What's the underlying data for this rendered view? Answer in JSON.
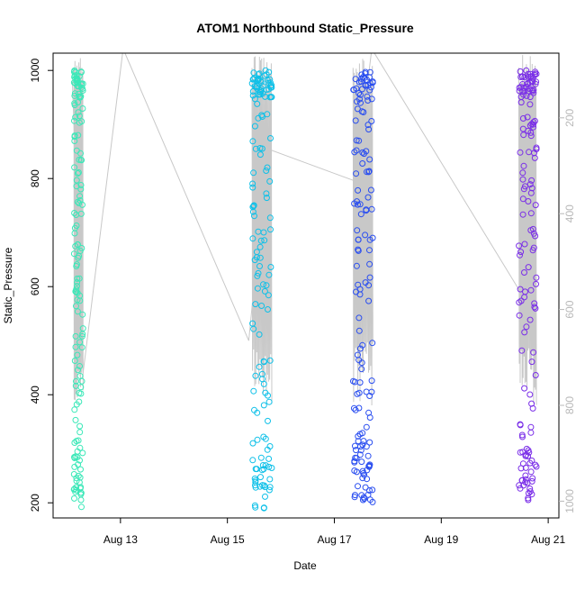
{
  "chart_data": {
    "type": "scatter",
    "title": "ATOM1 Northbound Static_Pressure",
    "xlabel": "Date",
    "ylabel": "Static_Pressure",
    "x_ticks": [
      "Aug 13",
      "Aug 15",
      "Aug 17",
      "Aug 19",
      "Aug 21"
    ],
    "x_tick_days": [
      13,
      15,
      17,
      19,
      21
    ],
    "xlim_days": [
      11.74,
      21.2
    ],
    "ylim": [
      172,
      1032
    ],
    "y_ticks": [
      200,
      400,
      600,
      800,
      1000
    ],
    "right_axis": {
      "ticks": [
        200,
        400,
        600,
        800,
        1000
      ],
      "lim": [
        65,
        1035
      ],
      "reversed": true,
      "color": "#b8b8b8"
    },
    "grid": false,
    "marker": "open-circle",
    "casts": [
      {
        "day_start": 12.13,
        "day_end": 12.3,
        "color": "#3be8b8",
        "seed": 11
      },
      {
        "day_start": 15.46,
        "day_end": 15.83,
        "color": "#0ec0e8",
        "seed": 23
      },
      {
        "day_start": 17.35,
        "day_end": 17.72,
        "color": "#2a4ef0",
        "seed": 37
      },
      {
        "day_start": 20.45,
        "day_end": 20.78,
        "color": "#7a2ee8",
        "seed": 53
      }
    ],
    "depth_track": {
      "color": "#c8c8c8",
      "points": [
        [
          12.1,
          980
        ],
        [
          12.3,
          440
        ],
        [
          13.05,
          1040
        ],
        [
          15.4,
          500
        ],
        [
          15.75,
          855
        ],
        [
          17.4,
          795
        ],
        [
          17.7,
          1040
        ],
        [
          20.48,
          590
        ],
        [
          20.6,
          900
        ]
      ]
    }
  }
}
